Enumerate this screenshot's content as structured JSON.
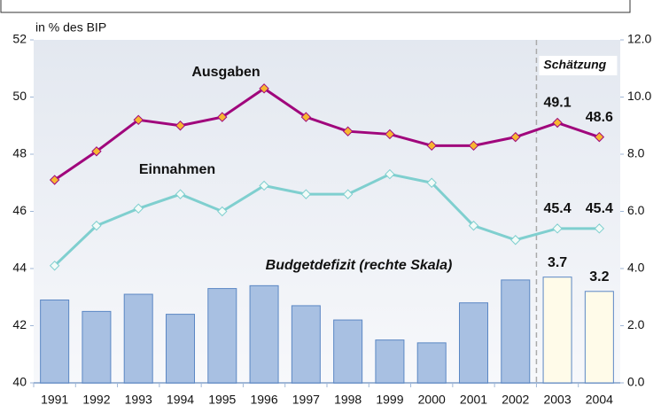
{
  "chart_data": {
    "type": "combo",
    "ylabel": "in % des BIP",
    "annotation": "Schätzung",
    "categories": [
      "1991",
      "1992",
      "1993",
      "1994",
      "1995",
      "1996",
      "1997",
      "1998",
      "1999",
      "2000",
      "2001",
      "2002",
      "2003",
      "2004"
    ],
    "ylim": [
      40,
      52
    ],
    "yticks": [
      40,
      42,
      44,
      46,
      48,
      50,
      52
    ],
    "y2lim": [
      0,
      12
    ],
    "y2ticks": [
      {
        "value": 0,
        "label": "0.0"
      },
      {
        "value": 2,
        "label": "2.0"
      },
      {
        "value": 4,
        "label": "4.0"
      },
      {
        "value": 6,
        "label": "6.0"
      },
      {
        "value": 8,
        "label": "8.0"
      },
      {
        "value": 10,
        "label": "10.0"
      },
      {
        "value": 12,
        "label": "12.0"
      }
    ],
    "series": [
      {
        "name": "Ausgaben",
        "type": "line",
        "color": "#a0067c",
        "marker_color": "#f7b731",
        "values": [
          47.1,
          48.1,
          49.2,
          49.0,
          49.3,
          50.3,
          49.3,
          48.8,
          48.7,
          48.3,
          48.3,
          48.6,
          49.1,
          48.6
        ],
        "value_labels": [
          null,
          null,
          null,
          null,
          null,
          null,
          null,
          null,
          null,
          null,
          null,
          null,
          "49.1",
          "48.6"
        ]
      },
      {
        "name": "Einnahmen",
        "type": "line",
        "color": "#7fcfcf",
        "marker_color": "#f2fbf8",
        "label_color": "#4aa9a7",
        "values": [
          44.1,
          45.5,
          46.1,
          46.6,
          46.0,
          46.9,
          46.6,
          46.6,
          47.3,
          47.0,
          45.5,
          45.0,
          45.4,
          45.4
        ],
        "value_labels": [
          null,
          null,
          null,
          null,
          null,
          null,
          null,
          null,
          null,
          null,
          null,
          null,
          "45.4",
          "45.4"
        ]
      },
      {
        "name": "Budgetdefizit (rechte Skala)",
        "type": "bar",
        "axis": "y2",
        "color": "#3c6fb4",
        "colors": [
          "#a8c0e2",
          "#a8c0e2",
          "#a8c0e2",
          "#a8c0e2",
          "#a8c0e2",
          "#a8c0e2",
          "#a8c0e2",
          "#a8c0e2",
          "#a8c0e2",
          "#a8c0e2",
          "#a8c0e2",
          "#a8c0e2",
          "#fffbe9",
          "#fffbe9"
        ],
        "values": [
          2.9,
          2.5,
          3.1,
          2.4,
          3.3,
          3.4,
          2.7,
          2.2,
          1.5,
          1.4,
          2.8,
          3.6,
          3.7,
          3.2
        ],
        "value_labels": [
          null,
          null,
          null,
          null,
          null,
          null,
          null,
          null,
          null,
          null,
          null,
          null,
          "3.7",
          "3.2"
        ]
      }
    ]
  }
}
